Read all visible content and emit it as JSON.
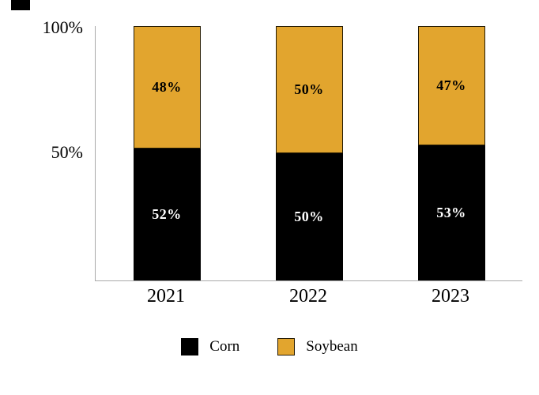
{
  "chart_data": {
    "type": "bar",
    "stacked": true,
    "categories": [
      "2021",
      "2022",
      "2023"
    ],
    "series": [
      {
        "name": "Corn",
        "color": "#000000",
        "label_color": "#ffffff",
        "values": [
          52,
          50,
          53
        ],
        "labels": [
          "52%",
          "50%",
          "53%"
        ]
      },
      {
        "name": "Soybean",
        "color": "#E2A52E",
        "label_color": "#000000",
        "values": [
          48,
          50,
          47
        ],
        "labels": [
          "48%",
          "50%",
          "47%"
        ]
      }
    ],
    "ylim": [
      0,
      100
    ],
    "yticks": [
      {
        "label": "100%",
        "value": 100
      },
      {
        "label": "50%",
        "value": 50
      }
    ],
    "grid": false,
    "legend_position": "bottom"
  }
}
